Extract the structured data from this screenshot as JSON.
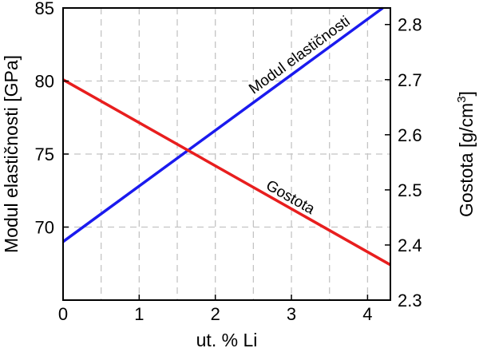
{
  "chart_data": {
    "type": "line",
    "xlabel": "ut. % Li",
    "ylabel_left": "Modul elastičnosti [GPa]",
    "ylabel_right_base": "Gostota [g/cm",
    "ylabel_right_sup": "3",
    "ylabel_right_end": "]",
    "xlim": [
      0,
      4.3
    ],
    "ylim_left": [
      65,
      85
    ],
    "ylim_right": [
      2.3,
      2.83
    ],
    "x_ticks": [
      0,
      1,
      2,
      3,
      4
    ],
    "x_tick_labels": [
      "0",
      "1",
      "2",
      "3",
      "4"
    ],
    "x_minor_grid": [
      0.5,
      1.5,
      2.5,
      3.5
    ],
    "y_left_ticks": [
      70,
      75,
      80,
      85
    ],
    "y_left_tick_labels": [
      "70",
      "75",
      "80",
      "85"
    ],
    "y_right_ticks": [
      2.3,
      2.4,
      2.5,
      2.6,
      2.7,
      2.8
    ],
    "y_right_tick_labels": [
      "2.3",
      "2.4",
      "2.5",
      "2.6",
      "2.7",
      "2.8"
    ],
    "grid": true,
    "series": [
      {
        "name": "Modul elastičnosti",
        "axis": "left",
        "color": "#1a1aee",
        "x": [
          0,
          4.2
        ],
        "y": [
          69,
          85
        ]
      },
      {
        "name": "Gostota",
        "axis": "right",
        "color": "#e81e1e",
        "x": [
          0,
          4.3
        ],
        "y": [
          2.7,
          2.364
        ]
      }
    ]
  }
}
